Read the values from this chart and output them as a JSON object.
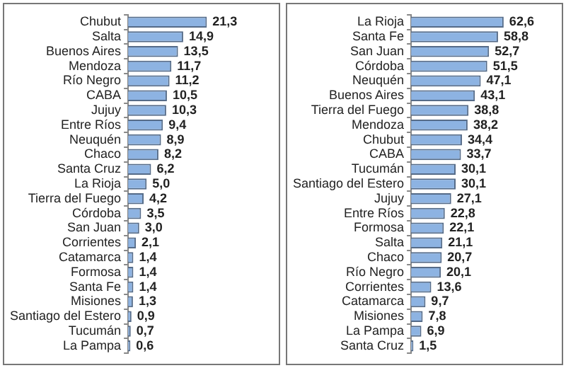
{
  "chart_data": [
    {
      "type": "bar",
      "orientation": "horizontal",
      "color": "#8db3e2",
      "categories": [
        "Chubut",
        "Salta",
        "Buenos Aires",
        "Mendoza",
        "Río Negro",
        "CABA",
        "Jujuy",
        "Entre Ríos",
        "Neuquén",
        "Chaco",
        "Santa Cruz",
        "La Rioja",
        "Tierra del Fuego",
        "Córdoba",
        "San Juan",
        "Corrientes",
        "Catamarca",
        "Formosa",
        "Santa Fe",
        "Misiones",
        "Santiago del Estero",
        "Tucumán",
        "La Pampa"
      ],
      "values": [
        21.3,
        14.9,
        13.5,
        11.7,
        11.2,
        10.5,
        10.3,
        9.4,
        8.9,
        8.2,
        6.2,
        5.0,
        4.2,
        3.5,
        3.0,
        2.1,
        1.4,
        1.4,
        1.4,
        1.3,
        0.9,
        0.7,
        0.6
      ],
      "value_labels": [
        "21,3",
        "14,9",
        "13,5",
        "11,7",
        "11,2",
        "10,5",
        "10,3",
        "9,4",
        "8,9",
        "8,2",
        "6,2",
        "5,0",
        "4,2",
        "3,5",
        "3,0",
        "2,1",
        "1,4",
        "1,4",
        "1,4",
        "1,3",
        "0,9",
        "0,7",
        "0,6"
      ]
    },
    {
      "type": "bar",
      "orientation": "horizontal",
      "color": "#8db3e2",
      "categories": [
        "La Rioja",
        "Santa Fe",
        "San Juan",
        "Córdoba",
        "Neuquén",
        "Buenos Aires",
        "Tierra del Fuego",
        "Mendoza",
        "Chubut",
        "CABA",
        "Tucumán",
        "Santiago del Estero",
        "Jujuy",
        "Entre Ríos",
        "Formosa",
        "Salta",
        "Chaco",
        "Río Negro",
        "Corrientes",
        "Catamarca",
        "Misiones",
        "La Pampa",
        "Santa Cruz"
      ],
      "values": [
        62.6,
        58.8,
        52.7,
        51.5,
        47.1,
        43.1,
        38.8,
        38.2,
        34.4,
        33.7,
        30.1,
        30.1,
        27.1,
        22.8,
        22.1,
        21.1,
        20.7,
        20.1,
        13.6,
        9.7,
        7.8,
        6.9,
        1.5
      ],
      "value_labels": [
        "62,6",
        "58,8",
        "52,7",
        "51,5",
        "47,1",
        "43,1",
        "38,8",
        "38,2",
        "34,4",
        "33,7",
        "30,1",
        "30,1",
        "27,1",
        "22,8",
        "22,1",
        "21,1",
        "20,7",
        "20,1",
        "13,6",
        "9,7",
        "7,8",
        "6,9",
        "1,5"
      ]
    }
  ]
}
